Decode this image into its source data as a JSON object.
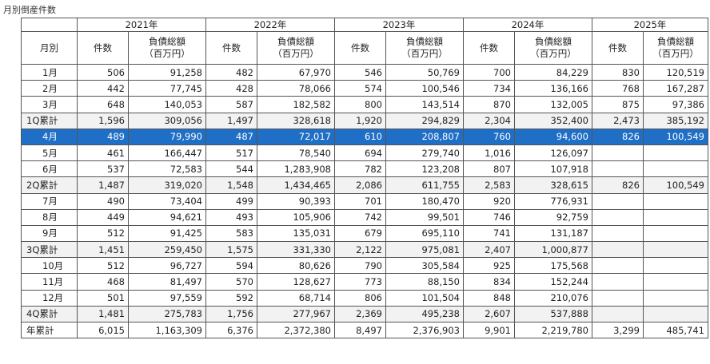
{
  "title": "月別倒産件数",
  "header": {
    "month_col": "月別",
    "count_col": "件数",
    "debt_col_line1": "負債総額",
    "debt_col_line2": "（百万円）",
    "years": [
      "2021年",
      "2022年",
      "2023年",
      "2024年",
      "2025年"
    ]
  },
  "rows": [
    {
      "label": "1月",
      "type": "month",
      "cells": [
        [
          "506",
          "91,258"
        ],
        [
          "482",
          "67,970"
        ],
        [
          "546",
          "50,769"
        ],
        [
          "700",
          "84,229"
        ],
        [
          "830",
          "120,519"
        ]
      ]
    },
    {
      "label": "2月",
      "type": "month",
      "cells": [
        [
          "442",
          "77,745"
        ],
        [
          "428",
          "78,066"
        ],
        [
          "574",
          "100,546"
        ],
        [
          "734",
          "136,166"
        ],
        [
          "768",
          "167,287"
        ]
      ]
    },
    {
      "label": "3月",
      "type": "month",
      "cells": [
        [
          "648",
          "140,053"
        ],
        [
          "587",
          "182,582"
        ],
        [
          "800",
          "143,514"
        ],
        [
          "870",
          "132,005"
        ],
        [
          "875",
          "97,386"
        ]
      ]
    },
    {
      "label": "1Q累計",
      "type": "quarter",
      "cells": [
        [
          "1,596",
          "309,056"
        ],
        [
          "1,497",
          "328,618"
        ],
        [
          "1,920",
          "294,829"
        ],
        [
          "2,304",
          "352,400"
        ],
        [
          "2,473",
          "385,192"
        ]
      ]
    },
    {
      "label": "4月",
      "type": "highlight",
      "cells": [
        [
          "489",
          "79,990"
        ],
        [
          "487",
          "72,017"
        ],
        [
          "610",
          "208,807"
        ],
        [
          "760",
          "94,600"
        ],
        [
          "826",
          "100,549"
        ]
      ]
    },
    {
      "label": "5月",
      "type": "month",
      "cells": [
        [
          "461",
          "166,447"
        ],
        [
          "517",
          "78,540"
        ],
        [
          "694",
          "279,740"
        ],
        [
          "1,016",
          "126,097"
        ],
        [
          "",
          ""
        ]
      ]
    },
    {
      "label": "6月",
      "type": "month",
      "cells": [
        [
          "537",
          "72,583"
        ],
        [
          "544",
          "1,283,908"
        ],
        [
          "782",
          "123,208"
        ],
        [
          "807",
          "107,918"
        ],
        [
          "",
          ""
        ]
      ]
    },
    {
      "label": "2Q累計",
      "type": "quarter",
      "cells": [
        [
          "1,487",
          "319,020"
        ],
        [
          "1,548",
          "1,434,465"
        ],
        [
          "2,086",
          "611,755"
        ],
        [
          "2,583",
          "328,615"
        ],
        [
          "826",
          "100,549"
        ]
      ]
    },
    {
      "label": "7月",
      "type": "month",
      "cells": [
        [
          "490",
          "73,404"
        ],
        [
          "499",
          "90,393"
        ],
        [
          "701",
          "180,470"
        ],
        [
          "920",
          "776,931"
        ],
        [
          "",
          ""
        ]
      ]
    },
    {
      "label": "8月",
      "type": "month",
      "cells": [
        [
          "449",
          "94,621"
        ],
        [
          "493",
          "105,906"
        ],
        [
          "742",
          "99,501"
        ],
        [
          "746",
          "92,759"
        ],
        [
          "",
          ""
        ]
      ]
    },
    {
      "label": "9月",
      "type": "month",
      "cells": [
        [
          "512",
          "91,425"
        ],
        [
          "583",
          "135,031"
        ],
        [
          "679",
          "695,110"
        ],
        [
          "741",
          "131,187"
        ],
        [
          "",
          ""
        ]
      ]
    },
    {
      "label": "3Q累計",
      "type": "quarter",
      "cells": [
        [
          "1,451",
          "259,450"
        ],
        [
          "1,575",
          "331,330"
        ],
        [
          "2,122",
          "975,081"
        ],
        [
          "2,407",
          "1,000,877"
        ],
        [
          "",
          ""
        ]
      ]
    },
    {
      "label": "10月",
      "type": "month",
      "cells": [
        [
          "512",
          "96,727"
        ],
        [
          "594",
          "80,626"
        ],
        [
          "790",
          "305,584"
        ],
        [
          "925",
          "175,568"
        ],
        [
          "",
          ""
        ]
      ]
    },
    {
      "label": "11月",
      "type": "month",
      "cells": [
        [
          "468",
          "81,497"
        ],
        [
          "570",
          "128,627"
        ],
        [
          "773",
          "88,150"
        ],
        [
          "834",
          "152,244"
        ],
        [
          "",
          ""
        ]
      ]
    },
    {
      "label": "12月",
      "type": "month",
      "cells": [
        [
          "501",
          "97,559"
        ],
        [
          "592",
          "68,714"
        ],
        [
          "806",
          "101,504"
        ],
        [
          "848",
          "210,076"
        ],
        [
          "",
          ""
        ]
      ]
    },
    {
      "label": "4Q累計",
      "type": "quarter",
      "cells": [
        [
          "1,481",
          "275,783"
        ],
        [
          "1,756",
          "277,967"
        ],
        [
          "2,369",
          "495,238"
        ],
        [
          "2,607",
          "537,888"
        ],
        [
          "",
          ""
        ]
      ]
    },
    {
      "label": "年累計",
      "type": "total",
      "cells": [
        [
          "6,015",
          "1,163,309"
        ],
        [
          "6,376",
          "2,372,380"
        ],
        [
          "8,497",
          "2,376,903"
        ],
        [
          "9,901",
          "2,219,780"
        ],
        [
          "3,299",
          "485,741"
        ]
      ]
    }
  ]
}
